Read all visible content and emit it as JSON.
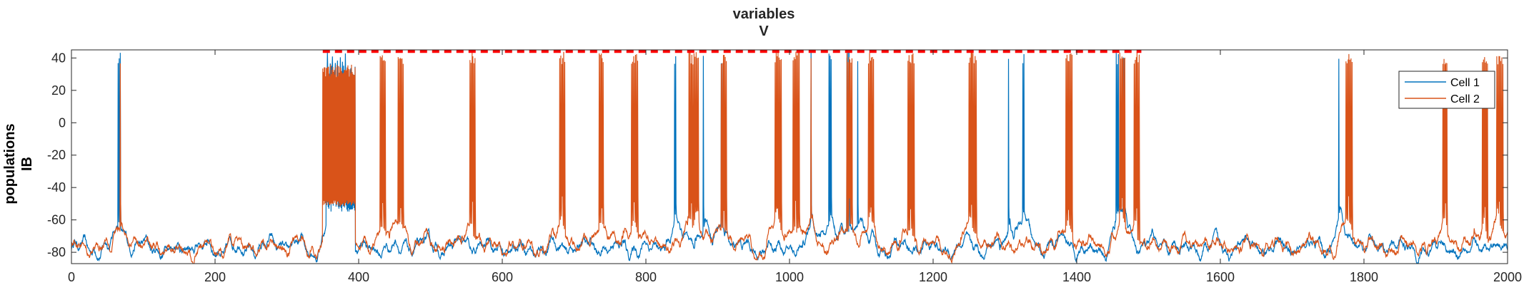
{
  "chart_data": {
    "type": "line",
    "title": [
      "variables",
      "V"
    ],
    "ylabel": [
      "populations",
      "IB"
    ],
    "xlim": [
      0,
      2000
    ],
    "ylim": [
      -87,
      45
    ],
    "xticks": [
      0,
      200,
      400,
      600,
      800,
      1000,
      1200,
      1400,
      1600,
      1800,
      2000
    ],
    "yticks": [
      -80,
      -60,
      -40,
      -20,
      0,
      20,
      40
    ],
    "grid": false,
    "legend_position": "top-right",
    "colors": {
      "cell1": "#0072BD",
      "cell2": "#D95319",
      "marker": "#FF0000"
    },
    "series": [
      {
        "name": "Cell 1",
        "color": "#0072BD",
        "baseline": -77,
        "bursts": [
          [
            65,
            3
          ],
          [
            355,
            20
          ],
          [
            840,
            2
          ],
          [
            880,
            1
          ],
          [
            905,
            2
          ],
          [
            1030,
            1
          ],
          [
            1055,
            3
          ],
          [
            1080,
            3
          ],
          [
            1095,
            1
          ],
          [
            1305,
            1
          ],
          [
            1325,
            2
          ],
          [
            1455,
            3
          ],
          [
            1465,
            2
          ],
          [
            1765,
            1
          ]
        ],
        "depolarized_block": [
          355,
          395,
          -53
        ]
      },
      {
        "name": "Cell 2",
        "color": "#D95319",
        "baseline": -76,
        "bursts": [
          [
            68,
            1
          ],
          [
            430,
            6
          ],
          [
            455,
            6
          ],
          [
            555,
            6
          ],
          [
            680,
            6
          ],
          [
            735,
            5
          ],
          [
            780,
            7
          ],
          [
            860,
            8
          ],
          [
            870,
            3
          ],
          [
            905,
            6
          ],
          [
            980,
            7
          ],
          [
            1005,
            7
          ],
          [
            1030,
            1
          ],
          [
            1080,
            6
          ],
          [
            1110,
            6
          ],
          [
            1165,
            7
          ],
          [
            1250,
            8
          ],
          [
            1385,
            7
          ],
          [
            1460,
            6
          ],
          [
            1480,
            6
          ],
          [
            1775,
            7
          ],
          [
            1910,
            5
          ],
          [
            1965,
            6
          ],
          [
            1985,
            7
          ]
        ],
        "depolarized_block": [
          350,
          395,
          -50
        ]
      }
    ],
    "event_marker": {
      "style": "dashed",
      "x": [
        350,
        1490
      ],
      "y": 44
    }
  }
}
